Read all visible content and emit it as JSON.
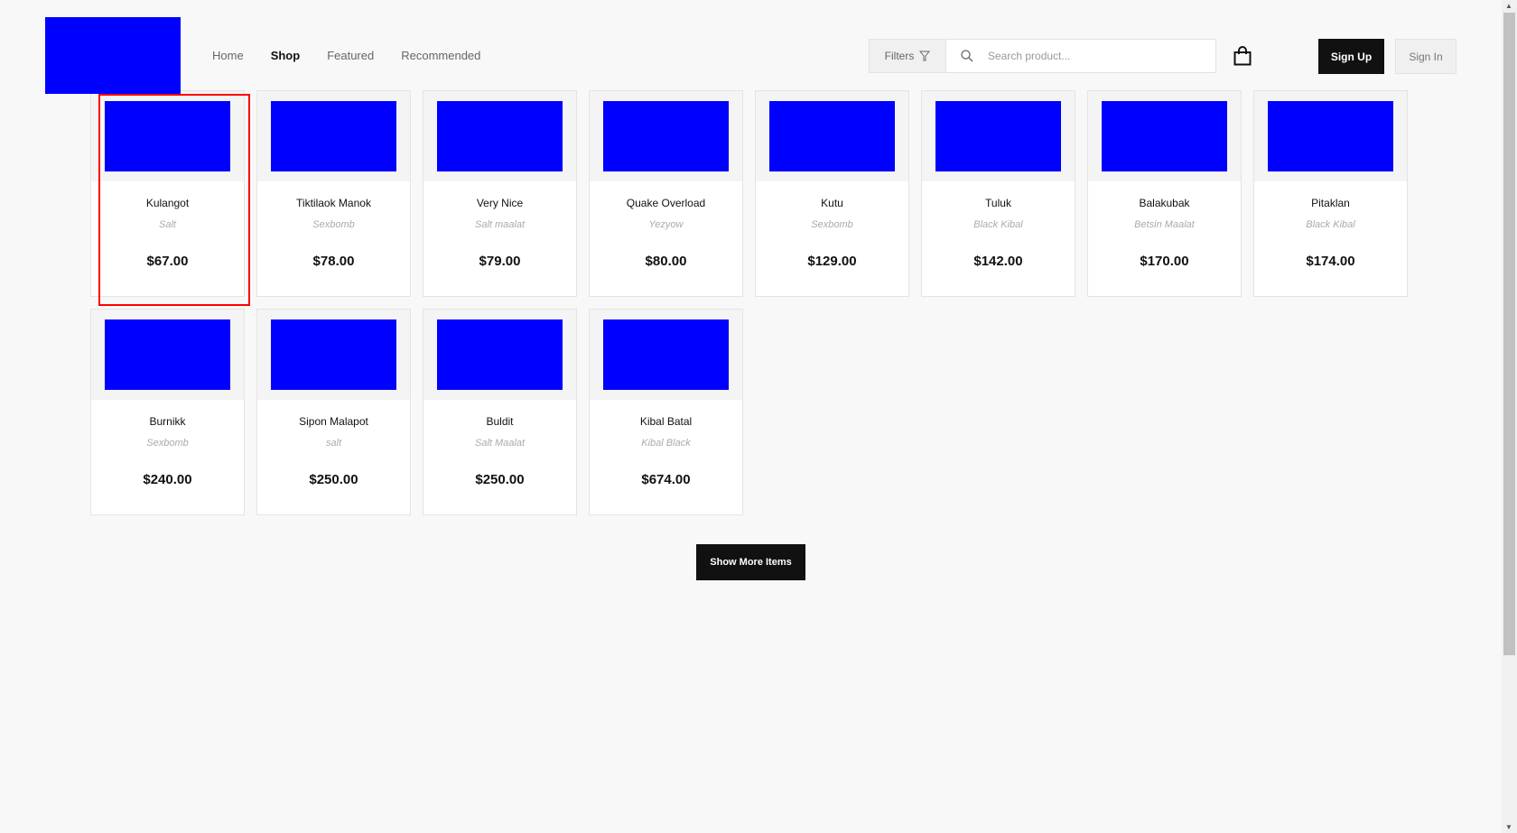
{
  "nav": {
    "items": [
      {
        "label": "Home",
        "active": false
      },
      {
        "label": "Shop",
        "active": true
      },
      {
        "label": "Featured",
        "active": false
      },
      {
        "label": "Recommended",
        "active": false
      }
    ]
  },
  "header": {
    "filters_label": "Filters",
    "search_placeholder": "Search product...",
    "signup_label": "Sign Up",
    "signin_label": "Sign In"
  },
  "products": [
    {
      "name": "Kulangot",
      "brand": "Salt",
      "price": "$67.00",
      "selected": true
    },
    {
      "name": "Tiktilaok Manok",
      "brand": "Sexbomb",
      "price": "$78.00"
    },
    {
      "name": "Very Nice",
      "brand": "Salt maalat",
      "price": "$79.00"
    },
    {
      "name": "Quake Overload",
      "brand": "Yezyow",
      "price": "$80.00"
    },
    {
      "name": "Kutu",
      "brand": "Sexbomb",
      "price": "$129.00"
    },
    {
      "name": "Tuluk",
      "brand": "Black Kibal",
      "price": "$142.00"
    },
    {
      "name": "Balakubak",
      "brand": "Betsin Maalat",
      "price": "$170.00"
    },
    {
      "name": "Pitaklan",
      "brand": "Black Kibal",
      "price": "$174.00"
    },
    {
      "name": "Burnikk",
      "brand": "Sexbomb",
      "price": "$240.00"
    },
    {
      "name": "Sipon Malapot",
      "brand": "salt",
      "price": "$250.00"
    },
    {
      "name": "Buldit",
      "brand": "Salt Maalat",
      "price": "$250.00"
    },
    {
      "name": "Kibal Batal",
      "brand": "Kibal Black",
      "price": "$674.00"
    }
  ],
  "show_more_label": "Show More Items",
  "colors": {
    "placeholder_image": "#0000ff",
    "highlight": "#ff0000",
    "primary_button": "#111111"
  }
}
